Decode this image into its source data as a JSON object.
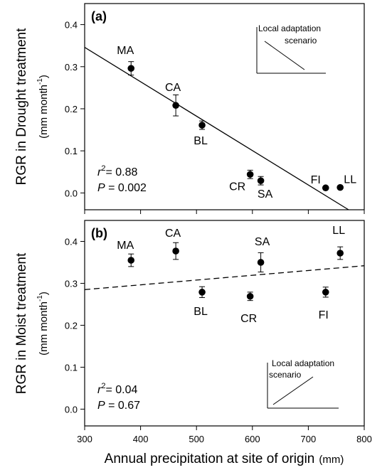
{
  "x_axis_title": "Annual precipitation at site of origin",
  "x_axis_unit": "(mm)",
  "x_ticks": [
    "300",
    "400",
    "500",
    "600",
    "700",
    "800"
  ],
  "y_ticks": [
    "0.0",
    "0.1",
    "0.2",
    "0.3",
    "0.4"
  ],
  "chart_data": [
    {
      "type": "scatter",
      "panel_label": "(a)",
      "ylabel": "RGR in Drought treatment",
      "ylabel_unit_prefix": "(mm month",
      "ylabel_unit_exp": "-1",
      "ylabel_unit_suffix": ")",
      "xlim": [
        300,
        800
      ],
      "ylim": [
        -0.04,
        0.45
      ],
      "points": [
        {
          "label": "MA",
          "x": 383,
          "y": 0.296,
          "err": 0.016
        },
        {
          "label": "CA",
          "x": 463,
          "y": 0.208,
          "err": 0.025
        },
        {
          "label": "BL",
          "x": 510,
          "y": 0.161,
          "err": 0.01
        },
        {
          "label": "CR",
          "x": 596,
          "y": 0.044,
          "err": 0.01
        },
        {
          "label": "SA",
          "x": 615,
          "y": 0.029,
          "err": 0.01
        },
        {
          "label": "FI",
          "x": 731,
          "y": 0.012,
          "err": 0
        },
        {
          "label": "LL",
          "x": 757,
          "y": 0.013,
          "err": 0
        }
      ],
      "regression": {
        "style": "solid",
        "x": [
          300,
          772
        ],
        "y": [
          0.346,
          -0.04
        ]
      },
      "stats": {
        "r2_prefix": "r",
        "r2_exp": "2",
        "r2_value": "= 0.88",
        "p_prefix": "P",
        "p_value": " = 0.002"
      },
      "inset": {
        "line1": "Local adaptation",
        "line2": "scenario",
        "trend": "negative"
      }
    },
    {
      "type": "scatter",
      "panel_label": "(b)",
      "ylabel": "RGR in Moist treatment",
      "ylabel_unit_prefix": "(mm month",
      "ylabel_unit_exp": "-1",
      "ylabel_unit_suffix": ")",
      "xlim": [
        300,
        800
      ],
      "ylim": [
        -0.04,
        0.45
      ],
      "points": [
        {
          "label": "MA",
          "x": 383,
          "y": 0.355,
          "err": 0.015
        },
        {
          "label": "CA",
          "x": 463,
          "y": 0.377,
          "err": 0.02
        },
        {
          "label": "BL",
          "x": 510,
          "y": 0.279,
          "err": 0.013
        },
        {
          "label": "CR",
          "x": 596,
          "y": 0.269,
          "err": 0.01
        },
        {
          "label": "SA",
          "x": 615,
          "y": 0.35,
          "err": 0.023
        },
        {
          "label": "FI",
          "x": 731,
          "y": 0.279,
          "err": 0.012
        },
        {
          "label": "LL",
          "x": 757,
          "y": 0.372,
          "err": 0.015
        }
      ],
      "regression": {
        "style": "dashed",
        "x": [
          300,
          800
        ],
        "y": [
          0.285,
          0.342
        ]
      },
      "stats": {
        "r2_prefix": "r",
        "r2_exp": "2",
        "r2_value": "= 0.04",
        "p_prefix": "P",
        "p_value": " = 0.67"
      },
      "inset": {
        "line1": "Local adaptation",
        "line2": "scenario",
        "trend": "positive"
      }
    }
  ]
}
